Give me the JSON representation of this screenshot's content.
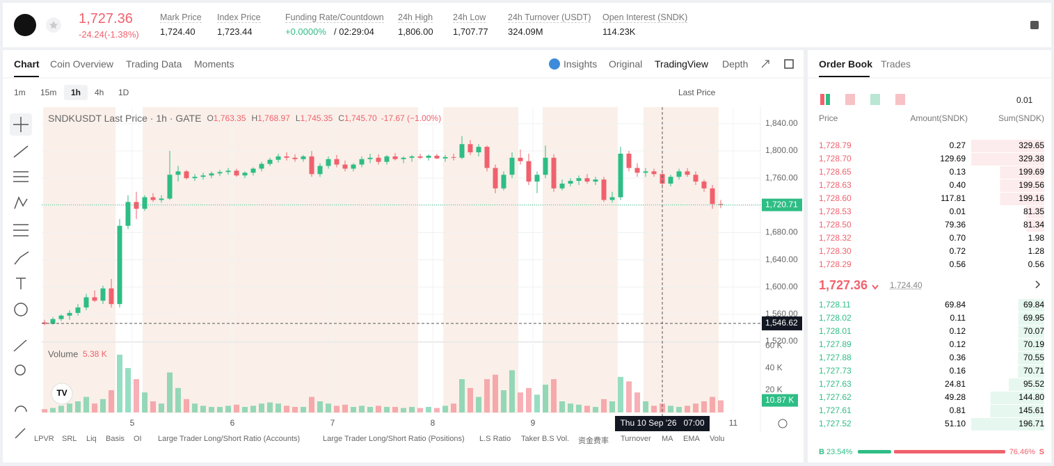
{
  "header": {
    "price": "1,727.36",
    "change": "-24.24(-1.38%)",
    "stats": [
      {
        "label": "Mark Price",
        "value": "1,724.40"
      },
      {
        "label": "Index Price",
        "value": "1,723.44"
      },
      {
        "label": "Funding Rate/Countdown",
        "value": "+0.0000%",
        "value2": "/ 02:29:04"
      },
      {
        "label": "24h High",
        "value": "1,806.00"
      },
      {
        "label": "24h Low",
        "value": "1,707.77"
      },
      {
        "label": "24h Turnover (USDT)",
        "value": "324.09M"
      },
      {
        "label": "Open Interest (SNDK)",
        "value": "114.23K"
      }
    ]
  },
  "chart_tabs": [
    "Chart",
    "Coin Overview",
    "Trading Data",
    "Moments"
  ],
  "view_tabs": [
    "Insights",
    "Original",
    "TradingView",
    "Depth"
  ],
  "intervals": [
    "1m",
    "15m",
    "1h",
    "4h",
    "1D"
  ],
  "price_source": "Last Price",
  "indicators": [
    "LPVR",
    "SRL",
    "Liq",
    "Basis",
    "OI",
    "Large Trader Long/Short Ratio (Accounts)",
    "Large Trader Long/Short Ratio (Positions)",
    "L.S Ratio",
    "Taker B.S Vol.",
    "资金费率",
    "Turnover",
    "MA",
    "EMA",
    "Volu"
  ],
  "chart_data": {
    "type": "candlestick",
    "title": "SNDKUSDT Last Price · 1h · GATE",
    "legend": [
      {
        "label": "O",
        "value": "1,763.35"
      },
      {
        "label": "H",
        "value": "1,768.97"
      },
      {
        "label": "L",
        "value": "1,745.35"
      },
      {
        "label": "C",
        "value": "1,745.70"
      }
    ],
    "legend_change": "-17.67 (−1.00%)",
    "up_color": "#2ebd85",
    "down_color": "#f0616d",
    "ohlc": [
      [
        1548,
        1552,
        1544,
        1546
      ],
      [
        1546,
        1556,
        1545,
        1553
      ],
      [
        1553,
        1560,
        1550,
        1558
      ],
      [
        1558,
        1566,
        1552,
        1562
      ],
      [
        1562,
        1575,
        1558,
        1570
      ],
      [
        1570,
        1590,
        1566,
        1585
      ],
      [
        1585,
        1595,
        1578,
        1580
      ],
      [
        1580,
        1602,
        1575,
        1598
      ],
      [
        1598,
        1612,
        1570,
        1575
      ],
      [
        1575,
        1700,
        1570,
        1690
      ],
      [
        1690,
        1735,
        1685,
        1725
      ],
      [
        1725,
        1740,
        1700,
        1715
      ],
      [
        1715,
        1735,
        1712,
        1732
      ],
      [
        1732,
        1738,
        1725,
        1728
      ],
      [
        1728,
        1735,
        1724,
        1730
      ],
      [
        1730,
        1800,
        1728,
        1765
      ],
      [
        1765,
        1778,
        1755,
        1770
      ],
      [
        1770,
        1772,
        1758,
        1760
      ],
      [
        1760,
        1766,
        1756,
        1762
      ],
      [
        1762,
        1768,
        1758,
        1764
      ],
      [
        1764,
        1770,
        1760,
        1767
      ],
      [
        1767,
        1772,
        1763,
        1769
      ],
      [
        1769,
        1775,
        1765,
        1771
      ],
      [
        1771,
        1774,
        1762,
        1764
      ],
      [
        1764,
        1770,
        1760,
        1768
      ],
      [
        1768,
        1776,
        1764,
        1774
      ],
      [
        1774,
        1784,
        1770,
        1781
      ],
      [
        1781,
        1790,
        1778,
        1787
      ],
      [
        1787,
        1796,
        1783,
        1792
      ],
      [
        1792,
        1798,
        1786,
        1790
      ],
      [
        1790,
        1795,
        1784,
        1788
      ],
      [
        1788,
        1794,
        1784,
        1792
      ],
      [
        1792,
        1800,
        1762,
        1766
      ],
      [
        1766,
        1782,
        1762,
        1778
      ],
      [
        1778,
        1792,
        1774,
        1788
      ],
      [
        1788,
        1794,
        1776,
        1780
      ],
      [
        1780,
        1786,
        1770,
        1774
      ],
      [
        1774,
        1782,
        1770,
        1780
      ],
      [
        1780,
        1792,
        1776,
        1788
      ],
      [
        1788,
        1796,
        1782,
        1790
      ],
      [
        1790,
        1795,
        1780,
        1784
      ],
      [
        1784,
        1794,
        1780,
        1792
      ],
      [
        1792,
        1797,
        1786,
        1788
      ],
      [
        1788,
        1792,
        1782,
        1790
      ],
      [
        1790,
        1794,
        1784,
        1792
      ],
      [
        1792,
        1796,
        1788,
        1790
      ],
      [
        1790,
        1795,
        1786,
        1793
      ],
      [
        1793,
        1796,
        1788,
        1789
      ],
      [
        1789,
        1794,
        1784,
        1791
      ],
      [
        1791,
        1796,
        1786,
        1790
      ],
      [
        1790,
        1822,
        1788,
        1810
      ],
      [
        1810,
        1816,
        1794,
        1798
      ],
      [
        1798,
        1810,
        1792,
        1806
      ],
      [
        1806,
        1808,
        1770,
        1775
      ],
      [
        1775,
        1780,
        1738,
        1745
      ],
      [
        1745,
        1770,
        1742,
        1765
      ],
      [
        1765,
        1798,
        1760,
        1790
      ],
      [
        1790,
        1802,
        1780,
        1785
      ],
      [
        1785,
        1796,
        1750,
        1755
      ],
      [
        1755,
        1770,
        1738,
        1765
      ],
      [
        1765,
        1808,
        1760,
        1790
      ],
      [
        1790,
        1795,
        1740,
        1745
      ],
      [
        1745,
        1758,
        1742,
        1752
      ],
      [
        1752,
        1760,
        1748,
        1756
      ],
      [
        1756,
        1764,
        1750,
        1760
      ],
      [
        1760,
        1766,
        1752,
        1755
      ],
      [
        1755,
        1762,
        1750,
        1758
      ],
      [
        1758,
        1762,
        1725,
        1728
      ],
      [
        1728,
        1740,
        1724,
        1732
      ],
      [
        1732,
        1806,
        1728,
        1796
      ],
      [
        1796,
        1800,
        1770,
        1775
      ],
      [
        1775,
        1782,
        1762,
        1768
      ],
      [
        1768,
        1775,
        1762,
        1770
      ],
      [
        1770,
        1774,
        1762,
        1766
      ],
      [
        1766,
        1772,
        1745,
        1752
      ],
      [
        1752,
        1765,
        1748,
        1762
      ],
      [
        1762,
        1774,
        1758,
        1770
      ],
      [
        1770,
        1775,
        1762,
        1765
      ],
      [
        1765,
        1770,
        1750,
        1755
      ],
      [
        1755,
        1758,
        1740,
        1745
      ],
      [
        1745,
        1750,
        1715,
        1722
      ],
      [
        1722,
        1728,
        1716,
        1720.71
      ]
    ],
    "volume": [
      3,
      4,
      6,
      8,
      10,
      14,
      8,
      12,
      20,
      52,
      40,
      30,
      18,
      10,
      8,
      36,
      22,
      12,
      8,
      6,
      5,
      5,
      6,
      7,
      5,
      6,
      8,
      9,
      8,
      6,
      5,
      5,
      14,
      10,
      8,
      6,
      7,
      5,
      6,
      5,
      6,
      5,
      5,
      4,
      5,
      4,
      5,
      4,
      6,
      8,
      30,
      22,
      14,
      30,
      34,
      20,
      38,
      18,
      22,
      16,
      25,
      30,
      10,
      8,
      7,
      6,
      5,
      12,
      10,
      32,
      28,
      18,
      10,
      6,
      8,
      6,
      5,
      6,
      8,
      10,
      14,
      10.87
    ],
    "xlim": [
      0,
      85
    ],
    "ylim": [
      1520,
      1845
    ],
    "yticks": [
      {
        "value": 1520,
        "label": "1,520.00"
      },
      {
        "value": 1560,
        "label": "1,560.00"
      },
      {
        "value": 1600,
        "label": "1,600.00"
      },
      {
        "value": 1640,
        "label": "1,640.00"
      },
      {
        "value": 1680,
        "label": "1,680.00"
      },
      {
        "value": 1720,
        "label": "1,720.00"
      },
      {
        "value": 1760,
        "label": "1,760.00"
      },
      {
        "value": 1800,
        "label": "1,800.00"
      },
      {
        "value": 1840,
        "label": "1,840.00"
      }
    ],
    "xticks": [
      {
        "value": 10.5,
        "label": "5"
      },
      {
        "value": 22.5,
        "label": "6"
      },
      {
        "value": 34.5,
        "label": "7"
      },
      {
        "value": 46.5,
        "label": "8"
      },
      {
        "value": 58.5,
        "label": "9"
      },
      {
        "value": 82.5,
        "label": "11"
      }
    ],
    "last_price": {
      "value": 1720.71,
      "label": "1,720.71"
    },
    "crosshair_price": {
      "value": 1546.62,
      "label": "1,546.62"
    },
    "crosshair_x": {
      "value": 74,
      "label": "Thu 10 Sep '26   07:00"
    },
    "volume_title": "Volume",
    "volume_current": "5.38 K",
    "vlim": [
      0,
      62
    ],
    "vticks": [
      {
        "value": 20,
        "label": "20 K"
      },
      {
        "value": 40,
        "label": "40 K"
      },
      {
        "value": 60,
        "label": "60 K"
      }
    ],
    "last_volume": {
      "value": 10.87,
      "label": "10.87 K"
    }
  },
  "order_book": {
    "tabs": [
      "Order Book",
      "Trades"
    ],
    "tick": "0.01",
    "columns": [
      "Price",
      "Amount(SNDK)",
      "Sum(SNDK)"
    ],
    "asks": {
      "prices": [
        "1,728.79",
        "1,728.70",
        "1,728.65",
        "1,728.63",
        "1,728.60",
        "1,728.53",
        "1,728.50",
        "1,728.32",
        "1,728.30",
        "1,728.29"
      ],
      "amounts": [
        "0.27",
        "129.69",
        "0.13",
        "0.40",
        "117.81",
        "0.01",
        "79.36",
        "0.70",
        "0.72",
        "0.56"
      ],
      "sums": [
        329.65,
        329.38,
        199.69,
        199.56,
        199.16,
        81.35,
        81.34,
        1.98,
        1.28,
        0.56
      ]
    },
    "mid_price": "1,727.36",
    "mark_price": "1,724.40",
    "bids": {
      "prices": [
        "1,728.11",
        "1,728.02",
        "1,728.01",
        "1,727.89",
        "1,727.88",
        "1,727.73",
        "1,727.63",
        "1,727.62",
        "1,727.61",
        "1,727.52"
      ],
      "amounts": [
        "69.84",
        "0.11",
        "0.12",
        "0.12",
        "0.36",
        "0.16",
        "24.81",
        "49.28",
        "0.81",
        "51.10"
      ],
      "sums": [
        69.84,
        69.95,
        70.07,
        70.19,
        70.55,
        70.71,
        95.52,
        144.8,
        145.61,
        196.71
      ],
      "value_labels": [
        "69.84",
        "69.95",
        "70.07",
        "70.19",
        "70.55",
        "70.71",
        "95.52",
        "144.80",
        "145.61",
        "196.71"
      ]
    },
    "buy_label": "B",
    "buy": 23.54,
    "buy_text": "23.54%",
    "sell": 76.46,
    "sell_text": "76.46%",
    "sell_label": "S"
  }
}
